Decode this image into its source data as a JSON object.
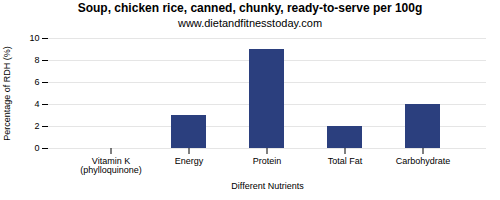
{
  "chart_data": {
    "type": "bar",
    "title": "Soup, chicken rice, canned, chunky, ready-to-serve per 100g",
    "subtitle": "www.dietandfitnesstoday.com",
    "categories": [
      "Vitamin K (phylloquinone)",
      "Energy",
      "Protein",
      "Total Fat",
      "Carbohydrate"
    ],
    "values": [
      0,
      3,
      9,
      2,
      4
    ],
    "color": "#2b3f7e",
    "xlabel": "Different Nutrients",
    "ylabel": "Percentage of RDH (%)",
    "ylim": [
      0,
      10
    ],
    "yticks": [
      0,
      2,
      4,
      6,
      8,
      10
    ],
    "grid": true
  }
}
